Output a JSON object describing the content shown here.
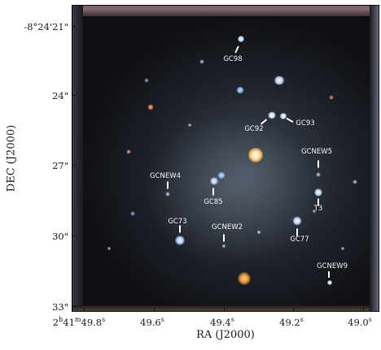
{
  "axes": {
    "xlabel": "RA (J2000)",
    "ylabel": "DEC (J2000)",
    "yticks": [
      "-8°24'21\"",
      "24\"",
      "27\"",
      "30\"",
      "33\""
    ],
    "xticks": [
      {
        "h": "2",
        "m": "41",
        "s": "49.8",
        "first": true
      },
      {
        "text": "49.6",
        "unit": "s"
      },
      {
        "text": "49.4",
        "unit": "s"
      },
      {
        "text": "49.2",
        "unit": "s"
      },
      {
        "text": "49.0",
        "unit": "s"
      }
    ]
  },
  "sources": [
    {
      "name": "GC98"
    },
    {
      "name": "GC92"
    },
    {
      "name": "GC93"
    },
    {
      "name": "GCNEW5"
    },
    {
      "name": "GCNEW4"
    },
    {
      "name": "GC85"
    },
    {
      "name": "T3"
    },
    {
      "name": "GC73"
    },
    {
      "name": "GCNEW2"
    },
    {
      "name": "GC77"
    },
    {
      "name": "GCNEW9"
    }
  ],
  "colors": {
    "background_sky": "#0e0f13",
    "label_text": "#f2f2f2",
    "frame": "#111111"
  }
}
